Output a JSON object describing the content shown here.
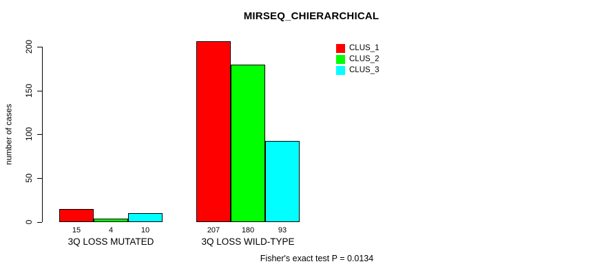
{
  "chart_data": {
    "type": "bar",
    "title": "MIRSEQ_CHIERARCHICAL",
    "xlabel": "",
    "ylabel": "number of cases",
    "ylim": [
      0,
      200
    ],
    "yticks": [
      0,
      50,
      100,
      150,
      200
    ],
    "categories": [
      "3Q LOSS MUTATED",
      "3Q LOSS WILD-TYPE"
    ],
    "series": [
      {
        "name": "CLUS_1",
        "color": "#ff0000",
        "values": [
          15,
          207
        ]
      },
      {
        "name": "CLUS_2",
        "color": "#00ff00",
        "values": [
          4,
          180
        ]
      },
      {
        "name": "CLUS_3",
        "color": "#00ffff",
        "values": [
          10,
          93
        ]
      }
    ],
    "bar_value_labels": [
      [
        "15",
        "4",
        "10"
      ],
      [
        "207",
        "180",
        "93"
      ]
    ],
    "annotation": "Fisher's exact test P = 0.0134",
    "legend_position": "top-right",
    "grid": false,
    "background_color": "#ffffff",
    "bar_border_color": "#000000"
  }
}
